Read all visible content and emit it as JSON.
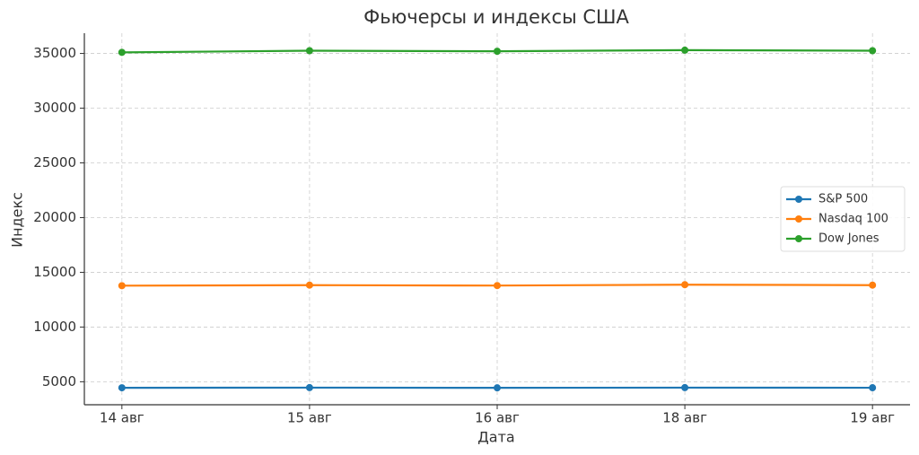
{
  "chart_data": {
    "type": "line",
    "title": "Фьючерсы и индексы США",
    "x_label": "Дата",
    "y_label": "Индекс",
    "categories": [
      "14 авг",
      "15 авг",
      "16 авг",
      "18 авг",
      "19 авг"
    ],
    "series": [
      {
        "name": "S&P 500",
        "color": "#1f77b4",
        "values": [
          4450,
          4465,
          4445,
          4465,
          4455
        ]
      },
      {
        "name": "Nasdaq 100",
        "color": "#ff7f0e",
        "values": [
          13780,
          13830,
          13790,
          13870,
          13830
        ]
      },
      {
        "name": "Dow Jones",
        "color": "#2ca02c",
        "values": [
          35100,
          35250,
          35200,
          35300,
          35250
        ]
      }
    ],
    "ylim": [
      2900,
      36850
    ],
    "yticks": [
      5000,
      10000,
      15000,
      20000,
      25000,
      30000,
      35000
    ],
    "grid": true,
    "legend": "center right"
  }
}
